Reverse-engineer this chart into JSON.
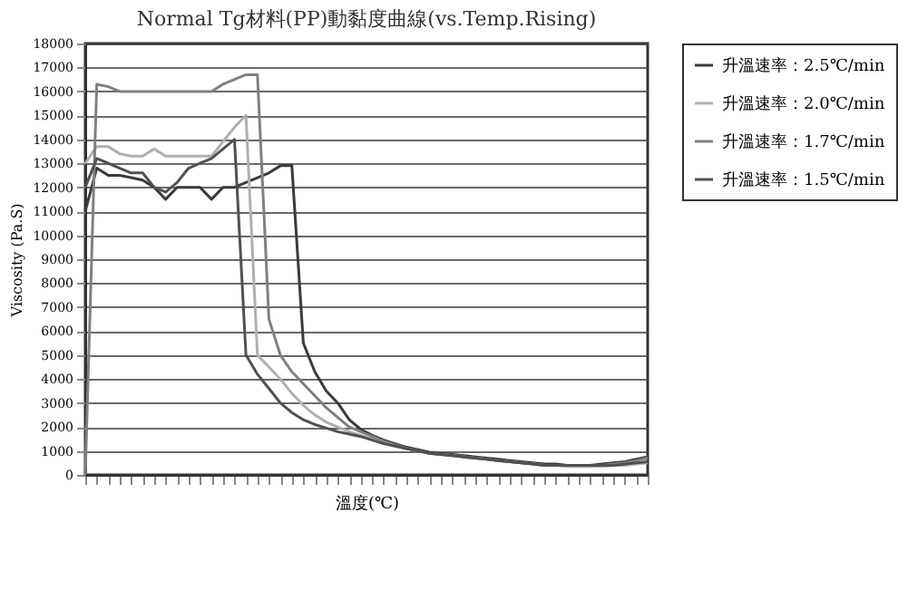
{
  "chart_data": {
    "type": "line",
    "title": "Normal Tg材料(PP)動黏度曲線(vs.Temp.Rising)",
    "xlabel": "溫度(℃)",
    "ylabel": "Viscosity (Pa.S)",
    "categories": [
      null,
      null,
      null,
      null,
      null,
      null,
      null,
      null,
      null,
      null,
      null,
      null,
      null,
      null,
      null,
      null,
      null,
      null,
      null,
      null,
      null,
      null,
      null,
      null,
      null,
      null,
      null,
      null,
      null,
      null,
      null,
      null,
      null,
      null,
      null,
      null,
      null,
      null,
      null,
      null,
      null,
      null,
      null,
      null,
      null,
      null,
      null,
      null,
      null,
      null
    ],
    "ylim": [
      0,
      18000
    ],
    "yticks": [
      0,
      1000,
      2000,
      3000,
      4000,
      5000,
      6000,
      7000,
      8000,
      9000,
      10000,
      11000,
      12000,
      13000,
      14000,
      15000,
      16000,
      17000,
      18000
    ],
    "grid": "y",
    "legend": "right",
    "line_style": "solid",
    "marker": "none",
    "series": [
      {
        "name": "升溫速率：2.5℃/min",
        "color": "#3a3a3a",
        "values": [
          11000,
          12800,
          12500,
          12500,
          12400,
          12300,
          12000,
          11500,
          12000,
          12000,
          12000,
          11500,
          12000,
          12000,
          12200,
          12400,
          12600,
          12900,
          12900,
          5500,
          4300,
          3500,
          3000,
          2300,
          1900,
          1650,
          1450,
          1300,
          1150,
          1050,
          950,
          900,
          850,
          800,
          750,
          700,
          650,
          600,
          550,
          500,
          450,
          450,
          400,
          400,
          400,
          450,
          500,
          550,
          650,
          750
        ]
      },
      {
        "name": "升溫速率：2.0℃/min",
        "color": "#b0b0b0",
        "values": [
          13000,
          13700,
          13700,
          13400,
          13300,
          13300,
          13600,
          13300,
          13300,
          13300,
          13300,
          13300,
          13900,
          14500,
          15000,
          5000,
          4500,
          4000,
          3400,
          2900,
          2500,
          2200,
          2000,
          1800,
          1650,
          1500,
          1350,
          1200,
          1100,
          1000,
          900,
          850,
          800,
          750,
          700,
          650,
          600,
          550,
          500,
          450,
          400,
          400,
          350,
          350,
          350,
          350,
          400,
          400,
          450,
          500
        ]
      },
      {
        "name": "升溫速率：1.7℃/min",
        "color": "#808080",
        "values": [
          0,
          16300,
          16200,
          16000,
          16000,
          16000,
          16000,
          16000,
          16000,
          16000,
          16000,
          16000,
          16300,
          16500,
          16700,
          16700,
          6500,
          5000,
          4300,
          3800,
          3300,
          2800,
          2400,
          2000,
          1800,
          1600,
          1400,
          1250,
          1100,
          1000,
          900,
          850,
          800,
          750,
          700,
          650,
          600,
          550,
          500,
          450,
          400,
          400,
          400,
          400,
          400,
          400,
          450,
          500,
          600,
          700
        ]
      },
      {
        "name": "升溫速率：1.5℃/min",
        "color": "#505050",
        "values": [
          12000,
          13200,
          13000,
          12800,
          12600,
          12600,
          12000,
          11800,
          12200,
          12800,
          13000,
          13200,
          13600,
          14000,
          5000,
          4200,
          3600,
          3000,
          2600,
          2300,
          2100,
          1950,
          1800,
          1700,
          1600,
          1450,
          1300,
          1200,
          1100,
          1000,
          900,
          850,
          800,
          750,
          700,
          650,
          600,
          550,
          500,
          450,
          400,
          400,
          400,
          400,
          400,
          400,
          400,
          450,
          500,
          550
        ]
      }
    ]
  }
}
